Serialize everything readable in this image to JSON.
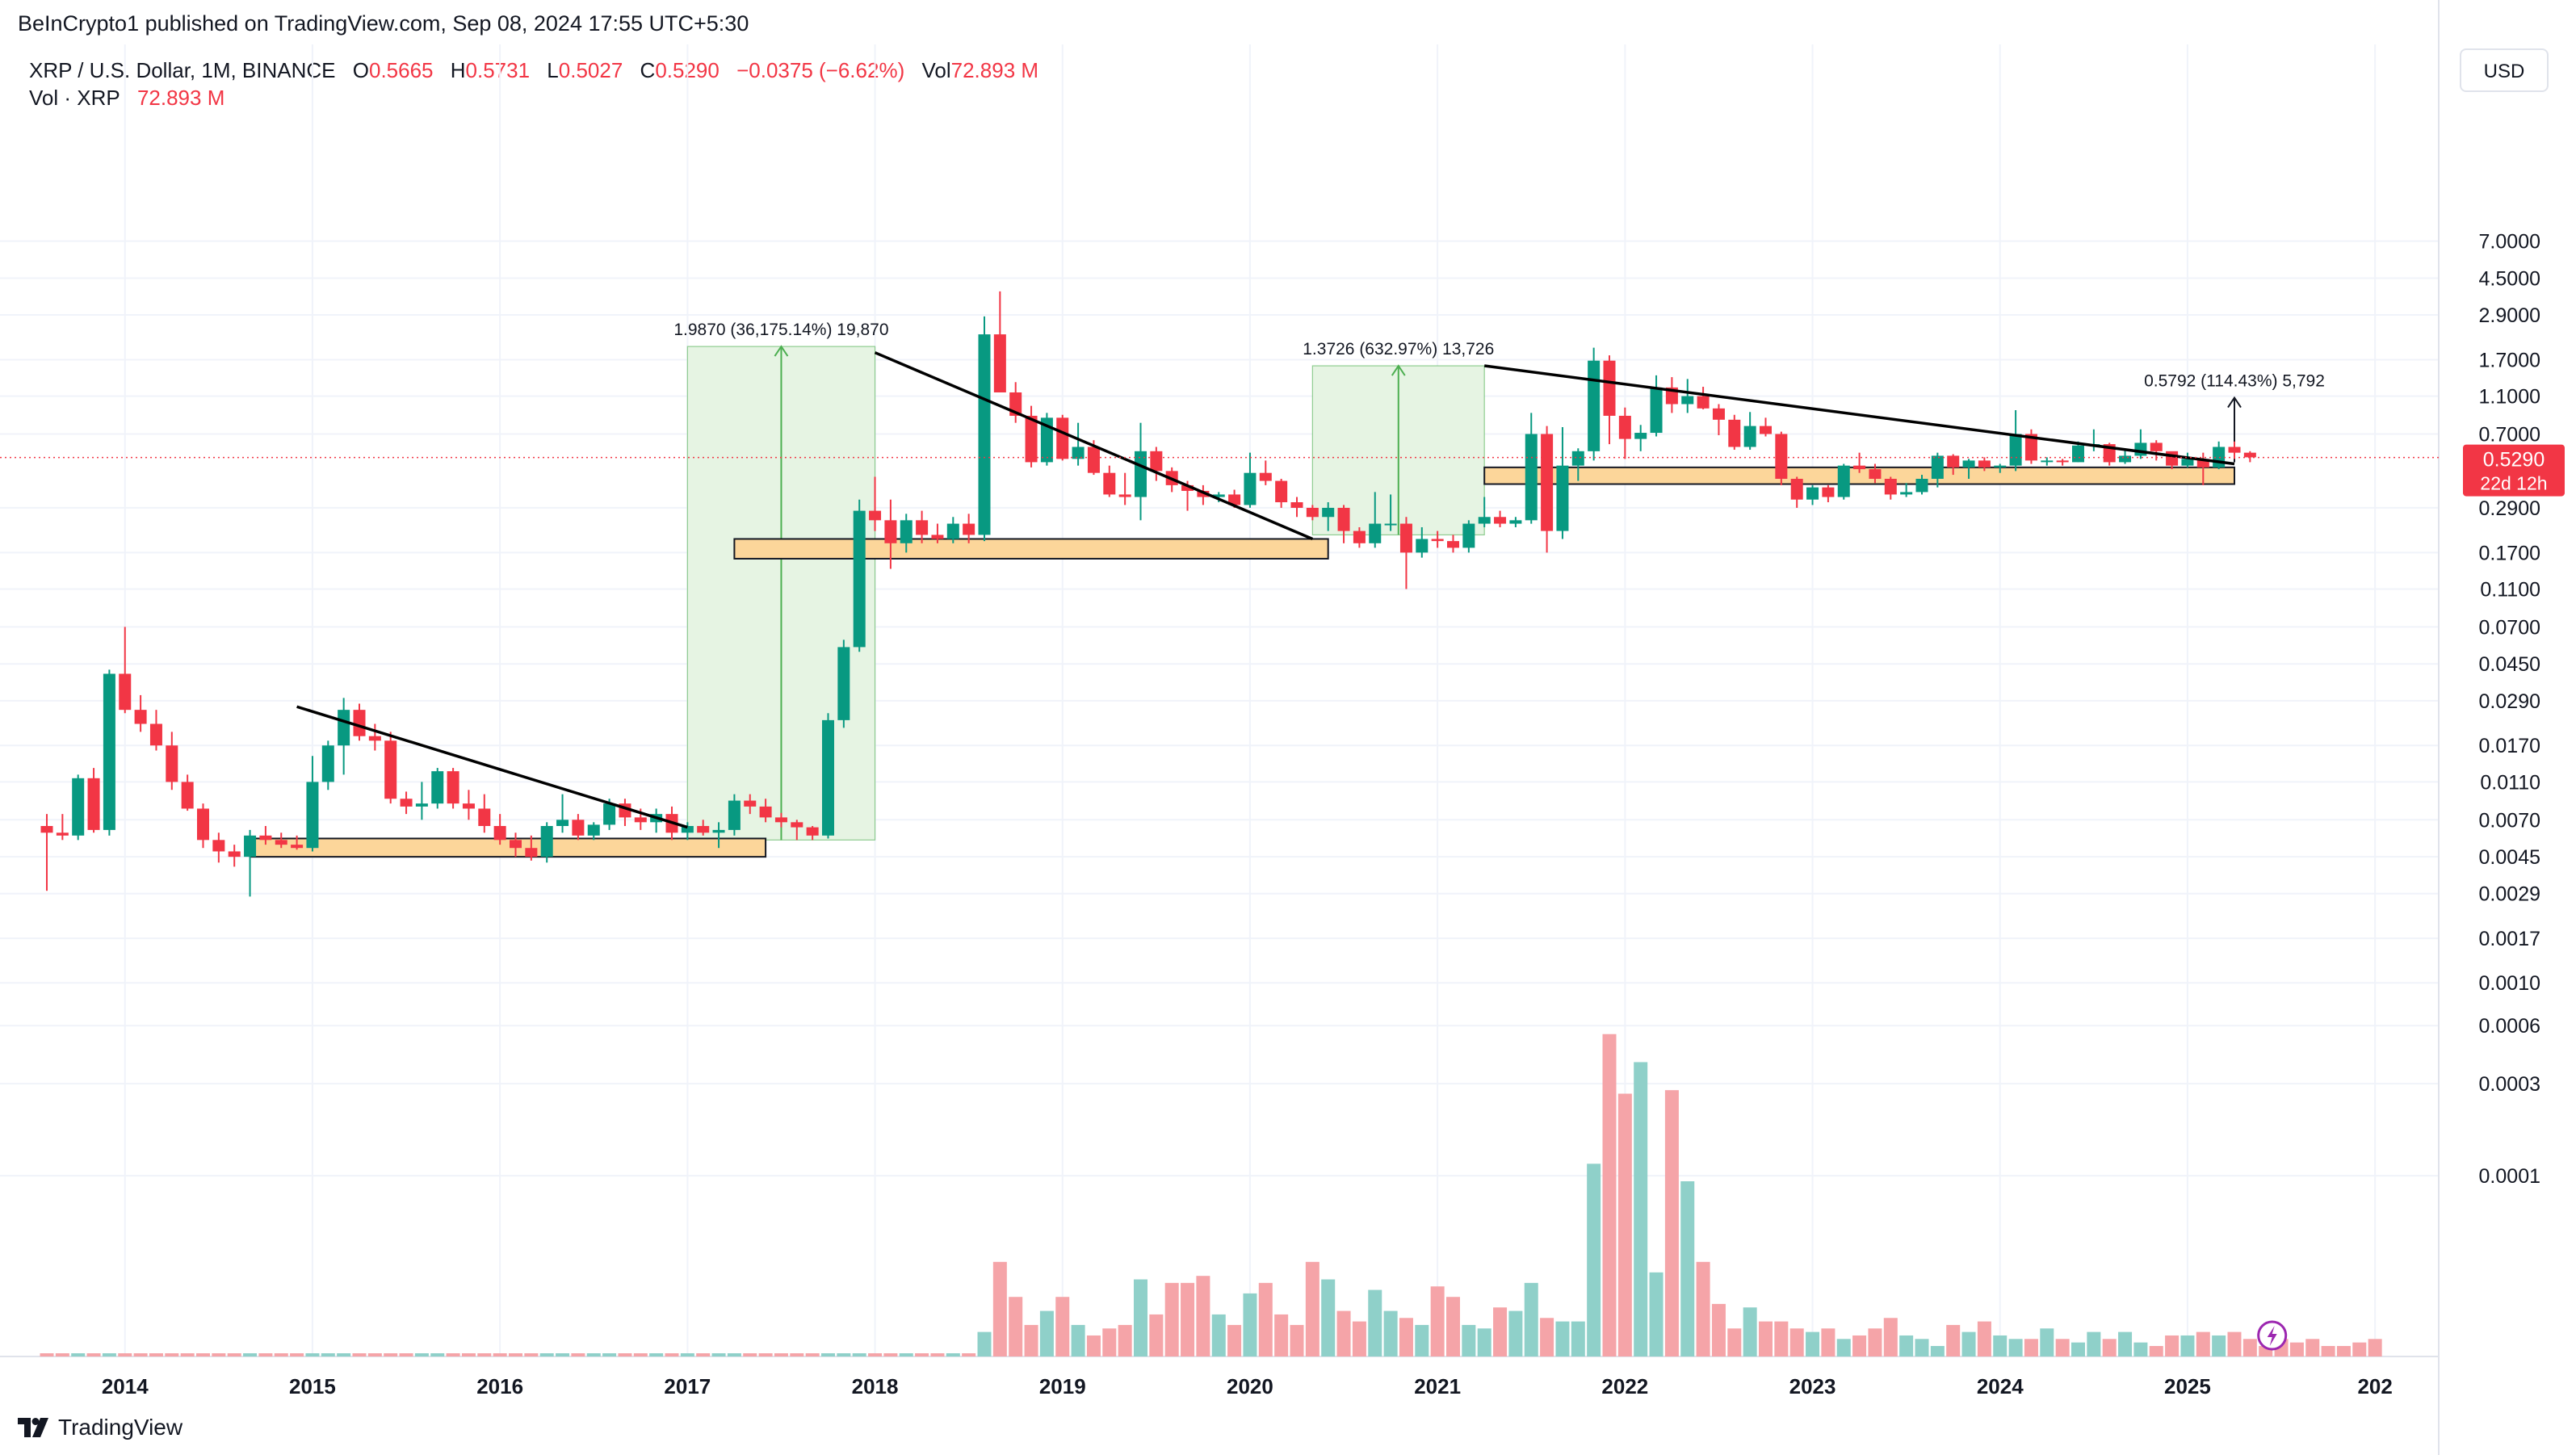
{
  "publish_line": "BeInCrypto1 published on TradingView.com, Sep 08, 2024 17:55 UTC+5:30",
  "legend": {
    "symbol": "XRP / U.S. Dollar, 1M, BINANCE",
    "o_label": "O",
    "o_value": "0.5665",
    "h_label": "H",
    "h_value": "0.5731",
    "l_label": "L",
    "l_value": "0.5027",
    "c_label": "C",
    "c_value": "0.5290",
    "change": "−0.0375 (−6.62%)",
    "vol_label": "Vol",
    "vol_value": "72.893 M",
    "vol_line_label": "Vol · XRP",
    "vol_line_value": "72.893 M"
  },
  "currency_button": "USD",
  "footer": {
    "brand": "TradingView"
  },
  "chart_data": {
    "type": "candlestick",
    "scale": "log",
    "x_ticks": [
      "2014",
      "2015",
      "2016",
      "2017",
      "2018",
      "2019",
      "2020",
      "2021",
      "2022",
      "2023",
      "2024",
      "2025",
      "202"
    ],
    "y_ticks": [
      "7.0000",
      "4.5000",
      "2.9000",
      "1.7000",
      "1.1000",
      "0.7000",
      "0.2900",
      "0.1700",
      "0.1100",
      "0.0700",
      "0.0450",
      "0.0290",
      "0.0170",
      "0.0110",
      "0.0070",
      "0.0045",
      "0.0029",
      "0.0017",
      "0.0010",
      "0.0006",
      "0.0003",
      "0.0001"
    ],
    "price_axis_values": [
      7.0,
      4.5,
      2.9,
      1.7,
      1.1,
      0.7,
      0.29,
      0.17,
      0.11,
      0.07,
      0.045,
      0.029,
      0.017,
      0.011,
      0.007,
      0.0045,
      0.0029,
      0.0017,
      0.001,
      0.0006,
      0.0003,
      0.0001
    ],
    "current_price": {
      "label": "0.5290",
      "countdown": "22d 12h",
      "value": 0.529
    },
    "colors": {
      "up": "#089981",
      "down": "#f23645",
      "vol_up": "#8fd0c9",
      "vol_down": "#f5a4a8",
      "zone_fill": "#fcd69a",
      "measure_fill": "#e6f4e3",
      "measure_line": "#4caf50"
    },
    "candles_start": "2013-08",
    "candles_ohlc": [
      [
        0.0065,
        0.0075,
        0.003,
        0.006
      ],
      [
        0.006,
        0.0075,
        0.0055,
        0.0058
      ],
      [
        0.0058,
        0.012,
        0.0055,
        0.0115
      ],
      [
        0.0115,
        0.013,
        0.006,
        0.0062
      ],
      [
        0.0062,
        0.042,
        0.0058,
        0.04
      ],
      [
        0.04,
        0.07,
        0.025,
        0.026
      ],
      [
        0.026,
        0.031,
        0.02,
        0.022
      ],
      [
        0.022,
        0.026,
        0.016,
        0.017
      ],
      [
        0.017,
        0.02,
        0.01,
        0.011
      ],
      [
        0.011,
        0.012,
        0.0078,
        0.008
      ],
      [
        0.008,
        0.0085,
        0.005,
        0.0055
      ],
      [
        0.0055,
        0.006,
        0.0042,
        0.0048
      ],
      [
        0.0048,
        0.0052,
        0.004,
        0.0045
      ],
      [
        0.0045,
        0.0062,
        0.0028,
        0.0058
      ],
      [
        0.0058,
        0.0065,
        0.0052,
        0.0055
      ],
      [
        0.0055,
        0.006,
        0.005,
        0.0052
      ],
      [
        0.0052,
        0.0058,
        0.0049,
        0.005
      ],
      [
        0.005,
        0.015,
        0.0048,
        0.011
      ],
      [
        0.011,
        0.018,
        0.01,
        0.017
      ],
      [
        0.017,
        0.03,
        0.012,
        0.026
      ],
      [
        0.026,
        0.028,
        0.018,
        0.019
      ],
      [
        0.019,
        0.022,
        0.016,
        0.018
      ],
      [
        0.018,
        0.02,
        0.0085,
        0.009
      ],
      [
        0.009,
        0.0098,
        0.0075,
        0.0082
      ],
      [
        0.0082,
        0.011,
        0.007,
        0.0085
      ],
      [
        0.0085,
        0.013,
        0.008,
        0.0125
      ],
      [
        0.0125,
        0.013,
        0.008,
        0.0085
      ],
      [
        0.0085,
        0.01,
        0.007,
        0.008
      ],
      [
        0.008,
        0.0095,
        0.006,
        0.0065
      ],
      [
        0.0065,
        0.0075,
        0.0052,
        0.0055
      ],
      [
        0.0055,
        0.006,
        0.0045,
        0.005
      ],
      [
        0.005,
        0.0058,
        0.0043,
        0.0045
      ],
      [
        0.0045,
        0.0068,
        0.0042,
        0.0065
      ],
      [
        0.0065,
        0.0095,
        0.006,
        0.007
      ],
      [
        0.007,
        0.0075,
        0.0055,
        0.0058
      ],
      [
        0.0058,
        0.0068,
        0.0055,
        0.0066
      ],
      [
        0.0066,
        0.009,
        0.0062,
        0.0085
      ],
      [
        0.0085,
        0.009,
        0.0065,
        0.0072
      ],
      [
        0.0072,
        0.008,
        0.0062,
        0.0068
      ],
      [
        0.0068,
        0.008,
        0.006,
        0.0075
      ],
      [
        0.0075,
        0.0082,
        0.0055,
        0.006
      ],
      [
        0.006,
        0.0068,
        0.0055,
        0.0065
      ],
      [
        0.0065,
        0.007,
        0.0058,
        0.006
      ],
      [
        0.006,
        0.0068,
        0.005,
        0.0062
      ],
      [
        0.0062,
        0.0095,
        0.0058,
        0.0088
      ],
      [
        0.0088,
        0.0095,
        0.0075,
        0.0082
      ],
      [
        0.0082,
        0.009,
        0.0068,
        0.0072
      ],
      [
        0.0072,
        0.0076,
        0.0064,
        0.0068
      ],
      [
        0.0068,
        0.007,
        0.0055,
        0.0064
      ],
      [
        0.0064,
        0.0065,
        0.0055,
        0.0058
      ],
      [
        0.0058,
        0.025,
        0.0056,
        0.023
      ],
      [
        0.023,
        0.06,
        0.021,
        0.055
      ],
      [
        0.055,
        0.32,
        0.052,
        0.28
      ],
      [
        0.28,
        0.42,
        0.22,
        0.25
      ],
      [
        0.25,
        0.32,
        0.14,
        0.19
      ],
      [
        0.19,
        0.27,
        0.17,
        0.25
      ],
      [
        0.25,
        0.28,
        0.19,
        0.21
      ],
      [
        0.21,
        0.24,
        0.19,
        0.2
      ],
      [
        0.2,
        0.26,
        0.19,
        0.24
      ],
      [
        0.24,
        0.27,
        0.19,
        0.21
      ],
      [
        0.21,
        2.85,
        0.195,
        2.3
      ],
      [
        2.3,
        3.84,
        1.3,
        1.15
      ],
      [
        1.15,
        1.3,
        0.8,
        0.87
      ],
      [
        0.87,
        0.98,
        0.47,
        0.5
      ],
      [
        0.5,
        0.9,
        0.48,
        0.85
      ],
      [
        0.85,
        0.88,
        0.51,
        0.52
      ],
      [
        0.52,
        0.8,
        0.48,
        0.6
      ],
      [
        0.6,
        0.65,
        0.43,
        0.44
      ],
      [
        0.44,
        0.48,
        0.33,
        0.34
      ],
      [
        0.34,
        0.44,
        0.3,
        0.33
      ],
      [
        0.33,
        0.8,
        0.25,
        0.57
      ],
      [
        0.57,
        0.6,
        0.4,
        0.45
      ],
      [
        0.45,
        0.47,
        0.35,
        0.38
      ],
      [
        0.38,
        0.4,
        0.28,
        0.355
      ],
      [
        0.355,
        0.38,
        0.3,
        0.33
      ],
      [
        0.33,
        0.35,
        0.31,
        0.34
      ],
      [
        0.34,
        0.36,
        0.29,
        0.3
      ],
      [
        0.3,
        0.56,
        0.29,
        0.44
      ],
      [
        0.44,
        0.51,
        0.38,
        0.4
      ],
      [
        0.4,
        0.41,
        0.29,
        0.31
      ],
      [
        0.31,
        0.33,
        0.26,
        0.29
      ],
      [
        0.29,
        0.3,
        0.25,
        0.26
      ],
      [
        0.26,
        0.31,
        0.22,
        0.29
      ],
      [
        0.29,
        0.3,
        0.19,
        0.22
      ],
      [
        0.22,
        0.23,
        0.18,
        0.19
      ],
      [
        0.19,
        0.35,
        0.18,
        0.24
      ],
      [
        0.24,
        0.34,
        0.22,
        0.24
      ],
      [
        0.24,
        0.26,
        0.11,
        0.17
      ],
      [
        0.17,
        0.23,
        0.16,
        0.2
      ],
      [
        0.2,
        0.22,
        0.18,
        0.195
      ],
      [
        0.195,
        0.21,
        0.17,
        0.18
      ],
      [
        0.18,
        0.25,
        0.17,
        0.24
      ],
      [
        0.24,
        0.33,
        0.23,
        0.26
      ],
      [
        0.26,
        0.28,
        0.23,
        0.24
      ],
      [
        0.24,
        0.26,
        0.23,
        0.25
      ],
      [
        0.25,
        0.9,
        0.24,
        0.7
      ],
      [
        0.7,
        0.77,
        0.17,
        0.22
      ],
      [
        0.22,
        0.76,
        0.2,
        0.48
      ],
      [
        0.48,
        0.59,
        0.4,
        0.57
      ],
      [
        0.57,
        1.96,
        0.51,
        1.68
      ],
      [
        1.68,
        1.79,
        0.62,
        0.87
      ],
      [
        0.87,
        0.96,
        0.52,
        0.66
      ],
      [
        0.66,
        0.78,
        0.57,
        0.71
      ],
      [
        0.71,
        1.41,
        0.68,
        1.22
      ],
      [
        1.22,
        1.38,
        0.9,
        1.0
      ],
      [
        1.0,
        1.35,
        0.9,
        1.1
      ],
      [
        1.1,
        1.23,
        0.94,
        0.95
      ],
      [
        0.95,
        1.0,
        0.69,
        0.83
      ],
      [
        0.83,
        0.88,
        0.58,
        0.6
      ],
      [
        0.6,
        0.91,
        0.58,
        0.77
      ],
      [
        0.77,
        0.85,
        0.68,
        0.7
      ],
      [
        0.7,
        0.72,
        0.38,
        0.41
      ],
      [
        0.41,
        0.42,
        0.29,
        0.32
      ],
      [
        0.32,
        0.38,
        0.3,
        0.37
      ],
      [
        0.37,
        0.38,
        0.31,
        0.33
      ],
      [
        0.33,
        0.49,
        0.32,
        0.48
      ],
      [
        0.48,
        0.56,
        0.44,
        0.46
      ],
      [
        0.46,
        0.49,
        0.39,
        0.41
      ],
      [
        0.41,
        0.42,
        0.32,
        0.34
      ],
      [
        0.34,
        0.39,
        0.33,
        0.35
      ],
      [
        0.35,
        0.43,
        0.34,
        0.41
      ],
      [
        0.41,
        0.56,
        0.37,
        0.54
      ],
      [
        0.54,
        0.55,
        0.43,
        0.47
      ],
      [
        0.47,
        0.52,
        0.41,
        0.51
      ],
      [
        0.51,
        0.53,
        0.45,
        0.47
      ],
      [
        0.47,
        0.49,
        0.44,
        0.48
      ],
      [
        0.48,
        0.93,
        0.45,
        0.7
      ],
      [
        0.7,
        0.74,
        0.49,
        0.51
      ],
      [
        0.51,
        0.53,
        0.48,
        0.51
      ],
      [
        0.51,
        0.52,
        0.48,
        0.5
      ],
      [
        0.5,
        0.64,
        0.5,
        0.61
      ],
      [
        0.61,
        0.74,
        0.57,
        0.62
      ],
      [
        0.62,
        0.63,
        0.48,
        0.5
      ],
      [
        0.5,
        0.58,
        0.49,
        0.54
      ],
      [
        0.54,
        0.74,
        0.52,
        0.63
      ],
      [
        0.63,
        0.65,
        0.51,
        0.57
      ],
      [
        0.57,
        0.56,
        0.46,
        0.48
      ],
      [
        0.48,
        0.56,
        0.47,
        0.52
      ],
      [
        0.52,
        0.56,
        0.38,
        0.47
      ],
      [
        0.47,
        0.64,
        0.46,
        0.6
      ],
      [
        0.6,
        0.64,
        0.52,
        0.56
      ],
      [
        0.56,
        0.57,
        0.5,
        0.53
      ]
    ],
    "volume_scaled": [
      0,
      0,
      0,
      0,
      0,
      0,
      0,
      0,
      0,
      0,
      0,
      0,
      0,
      0,
      0,
      0,
      0,
      0,
      0,
      0,
      0,
      0,
      0,
      0,
      0,
      0,
      0,
      0,
      0,
      0,
      0,
      0,
      0,
      0,
      0,
      0,
      0,
      0,
      0,
      0,
      0,
      0,
      0,
      0,
      0,
      0,
      0,
      0,
      0,
      0,
      0,
      0,
      0,
      0,
      0,
      0,
      0,
      0,
      0,
      0,
      0.07,
      0.27,
      0.17,
      0.09,
      0.13,
      0.17,
      0.09,
      0.06,
      0.08,
      0.09,
      0.22,
      0.12,
      0.21,
      0.21,
      0.23,
      0.12,
      0.09,
      0.18,
      0.21,
      0.12,
      0.09,
      0.27,
      0.22,
      0.13,
      0.1,
      0.19,
      0.13,
      0.11,
      0.09,
      0.2,
      0.17,
      0.09,
      0.08,
      0.14,
      0.13,
      0.21,
      0.11,
      0.1,
      0.1,
      0.55,
      0.92,
      0.75,
      0.84,
      0.24,
      0.76,
      0.5,
      0.27,
      0.15,
      0.08,
      0.14,
      0.1,
      0.1,
      0.08,
      0.07,
      0.08,
      0.05,
      0.06,
      0.08,
      0.11,
      0.06,
      0.05,
      0.03,
      0.09,
      0.07,
      0.1,
      0.06,
      0.05,
      0.05,
      0.08,
      0.05,
      0.04,
      0.07,
      0.05,
      0.07,
      0.04,
      0.03,
      0.06,
      0.06,
      0.07,
      0.06,
      0.07,
      0.05,
      0.03,
      0.05,
      0.04,
      0.05,
      0.03,
      0.03,
      0.04,
      0.05
    ],
    "support_zones": [
      {
        "from": "2014-09",
        "to": "2017-06",
        "low": 0.0045,
        "high": 0.0056
      },
      {
        "from": "2017-04",
        "to": "2020-06",
        "low": 0.158,
        "high": 0.2
      },
      {
        "from": "2021-04",
        "to": "2025-04",
        "low": 0.385,
        "high": 0.47
      }
    ],
    "trendlines": [
      {
        "from": "2014-12",
        "from_value": 0.027,
        "to": "2017-01",
        "to_value": 0.0064
      },
      {
        "from": "2018-01",
        "from_value": 1.85,
        "to": "2020-05",
        "to_value": 0.2
      },
      {
        "from": "2021-04",
        "from_value": 1.58,
        "to": "2025-04",
        "to_value": 0.49
      }
    ],
    "measurements": [
      {
        "label": "1.9870 (36,175.14%) 19,870",
        "from": "2017-01",
        "to": "2018-01",
        "low": 0.0055,
        "high": 1.99
      },
      {
        "label": "1.3726 (632.97%) 13,726",
        "from": "2020-05",
        "to": "2021-04",
        "low": 0.21,
        "high": 1.58
      },
      {
        "label": "0.5792 (114.43%) 5,792",
        "from": "2025-04",
        "to": "2025-04",
        "low": 0.5,
        "high": 1.08
      }
    ]
  }
}
